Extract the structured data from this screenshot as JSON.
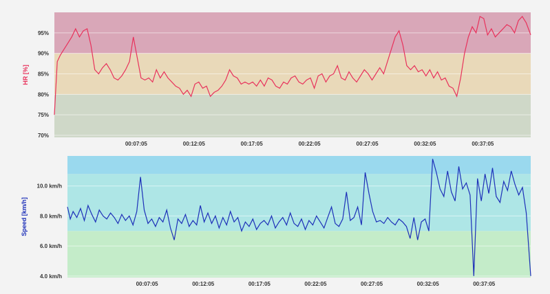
{
  "chart_data": [
    {
      "type": "line",
      "title": "",
      "ylabel": "HR [%]",
      "xlabel": "",
      "ylim": [
        69.5,
        100
      ],
      "xlim": [
        0,
        2474
      ],
      "x_ticks": [
        {
          "value": 425,
          "label": "00:07:05"
        },
        {
          "value": 725,
          "label": "00:12:05"
        },
        {
          "value": 1025,
          "label": "00:17:05"
        },
        {
          "value": 1325,
          "label": "00:22:05"
        },
        {
          "value": 1625,
          "label": "00:27:05"
        },
        {
          "value": 1925,
          "label": "00:32:05"
        },
        {
          "value": 2225,
          "label": "00:37:05"
        }
      ],
      "y_ticks": [
        {
          "value": 70,
          "label": "70%"
        },
        {
          "value": 75,
          "label": "75%"
        },
        {
          "value": 80,
          "label": "80%"
        },
        {
          "value": 85,
          "label": "85%"
        },
        {
          "value": 90,
          "label": "90%"
        },
        {
          "value": 95,
          "label": "95%"
        }
      ],
      "bands": [
        {
          "from": 69.5,
          "to": 80,
          "color": "#cfd8c8"
        },
        {
          "from": 80,
          "to": 90,
          "color": "#e9d9b9"
        },
        {
          "from": 90,
          "to": 100,
          "color": "#d9a7b8"
        }
      ],
      "series": [
        {
          "name": "HR",
          "color": "#e8315b",
          "x": [
            0,
            15,
            30,
            50,
            70,
            90,
            110,
            130,
            150,
            170,
            190,
            210,
            230,
            250,
            270,
            290,
            310,
            330,
            350,
            370,
            390,
            410,
            430,
            450,
            470,
            490,
            510,
            530,
            550,
            570,
            590,
            610,
            630,
            650,
            670,
            690,
            710,
            730,
            750,
            770,
            790,
            810,
            830,
            850,
            870,
            890,
            910,
            930,
            950,
            970,
            990,
            1010,
            1030,
            1050,
            1070,
            1090,
            1110,
            1130,
            1150,
            1170,
            1190,
            1210,
            1230,
            1250,
            1270,
            1290,
            1310,
            1330,
            1350,
            1370,
            1390,
            1410,
            1430,
            1450,
            1470,
            1490,
            1510,
            1530,
            1550,
            1570,
            1590,
            1610,
            1630,
            1650,
            1670,
            1690,
            1710,
            1730,
            1750,
            1770,
            1790,
            1810,
            1830,
            1850,
            1870,
            1890,
            1910,
            1930,
            1950,
            1970,
            1990,
            2010,
            2030,
            2050,
            2070,
            2090,
            2110,
            2130,
            2150,
            2170,
            2190,
            2210,
            2230,
            2250,
            2270,
            2290,
            2310,
            2330,
            2350,
            2370,
            2390,
            2410,
            2430,
            2450,
            2474
          ],
          "values": [
            75,
            88,
            89.5,
            91,
            92.5,
            94,
            96,
            94,
            95.5,
            96,
            92,
            86,
            85,
            86.5,
            87.5,
            86,
            84,
            83.5,
            84.5,
            86,
            88,
            94,
            89,
            84,
            83.5,
            84,
            83,
            86,
            84,
            85.5,
            84,
            83,
            82,
            81.5,
            80,
            81,
            79.5,
            82.5,
            83,
            81.5,
            82,
            79.5,
            80.5,
            81,
            82,
            83.5,
            86,
            84.5,
            84,
            82.5,
            83,
            82.5,
            83,
            82,
            83.5,
            82,
            84,
            83.5,
            82,
            81.5,
            83,
            82.5,
            84,
            84.5,
            83,
            82.5,
            83.5,
            84,
            81.5,
            84.5,
            85,
            83,
            84.5,
            85,
            87,
            84,
            83.5,
            85.5,
            84,
            83,
            84.5,
            86,
            85,
            83.5,
            85,
            86.5,
            85,
            88,
            91,
            94,
            95.5,
            92,
            87,
            86,
            87,
            85.5,
            86,
            84.5,
            86,
            84,
            85.5,
            83.5,
            84,
            82,
            81.5,
            79.5,
            84,
            90,
            94,
            96.5,
            95,
            99,
            98.5,
            94.5,
            96,
            94,
            95,
            96,
            97,
            96.5,
            95,
            98,
            99,
            97.5,
            94.5
          ]
        }
      ]
    },
    {
      "type": "line",
      "title": "",
      "ylabel": "Speed [km/h]",
      "xlabel": "",
      "ylim": [
        3.9,
        12
      ],
      "xlim": [
        0,
        2474
      ],
      "x_ticks": [
        {
          "value": 425,
          "label": "00:07:05"
        },
        {
          "value": 725,
          "label": "00:12:05"
        },
        {
          "value": 1025,
          "label": "00:17:05"
        },
        {
          "value": 1325,
          "label": "00:22:05"
        },
        {
          "value": 1625,
          "label": "00:27:05"
        },
        {
          "value": 1925,
          "label": "00:32:05"
        },
        {
          "value": 2225,
          "label": "00:37:05"
        }
      ],
      "y_ticks": [
        {
          "value": 4,
          "label": "4.0 km/h"
        },
        {
          "value": 6,
          "label": "6.0 km/h"
        },
        {
          "value": 8,
          "label": "8.0 km/h"
        },
        {
          "value": 10,
          "label": "10.0 km/h"
        }
      ],
      "bands": [
        {
          "from": 3.9,
          "to": 7,
          "color": "#c4ecc9"
        },
        {
          "from": 7,
          "to": 10.8,
          "color": "#aee6e6"
        },
        {
          "from": 10.8,
          "to": 12,
          "color": "#9ad9ee"
        }
      ],
      "series": [
        {
          "name": "Speed",
          "color": "#1c2fb8",
          "x": [
            0,
            15,
            30,
            50,
            70,
            90,
            110,
            130,
            150,
            170,
            190,
            210,
            230,
            250,
            270,
            290,
            310,
            330,
            350,
            370,
            390,
            410,
            430,
            450,
            470,
            490,
            510,
            530,
            550,
            570,
            590,
            610,
            630,
            650,
            670,
            690,
            710,
            730,
            750,
            770,
            790,
            810,
            830,
            850,
            870,
            890,
            910,
            930,
            950,
            970,
            990,
            1010,
            1030,
            1050,
            1070,
            1090,
            1110,
            1130,
            1150,
            1170,
            1190,
            1210,
            1230,
            1250,
            1270,
            1290,
            1310,
            1330,
            1350,
            1370,
            1390,
            1410,
            1430,
            1450,
            1470,
            1490,
            1510,
            1530,
            1550,
            1570,
            1590,
            1610,
            1630,
            1650,
            1670,
            1690,
            1710,
            1730,
            1750,
            1770,
            1790,
            1810,
            1830,
            1850,
            1870,
            1890,
            1910,
            1930,
            1950,
            1970,
            1990,
            2010,
            2030,
            2050,
            2070,
            2090,
            2110,
            2130,
            2150,
            2170,
            2190,
            2210,
            2230,
            2250,
            2270,
            2290,
            2310,
            2330,
            2350,
            2370,
            2390,
            2410,
            2430,
            2450,
            2474
          ],
          "values": [
            8.6,
            7.8,
            8.3,
            7.9,
            8.5,
            7.7,
            8.7,
            8.1,
            7.6,
            8.4,
            8.0,
            7.8,
            8.2,
            7.9,
            7.5,
            8.1,
            7.7,
            8.0,
            7.4,
            8.3,
            10.6,
            8.4,
            7.5,
            7.8,
            7.3,
            7.9,
            7.6,
            8.4,
            7.2,
            6.4,
            7.8,
            7.5,
            8.1,
            7.3,
            7.7,
            7.4,
            8.7,
            7.6,
            8.2,
            7.5,
            8.0,
            7.2,
            7.9,
            7.4,
            8.3,
            7.6,
            7.9,
            7.0,
            7.6,
            7.3,
            7.8,
            7.1,
            7.5,
            7.7,
            7.4,
            8.0,
            7.2,
            7.6,
            7.9,
            7.4,
            8.2,
            7.5,
            7.3,
            7.8,
            7.1,
            7.7,
            7.4,
            8.0,
            7.6,
            7.2,
            7.9,
            8.6,
            7.5,
            7.3,
            7.8,
            9.6,
            7.7,
            7.9,
            8.6,
            7.4,
            10.9,
            9.5,
            8.3,
            7.6,
            7.7,
            7.5,
            7.9,
            7.6,
            7.4,
            7.8,
            7.6,
            7.3,
            6.5,
            7.9,
            6.4,
            7.6,
            7.8,
            7.0,
            11.8,
            10.9,
            9.8,
            9.3,
            11.0,
            9.6,
            9.0,
            11.3,
            9.8,
            10.2,
            9.4,
            4.0,
            10.5,
            9.0,
            10.8,
            9.5,
            11.2,
            9.3,
            8.9,
            10.3,
            9.7,
            11.0,
            10.1,
            9.4,
            9.9,
            8.2,
            4.0
          ]
        }
      ]
    }
  ]
}
